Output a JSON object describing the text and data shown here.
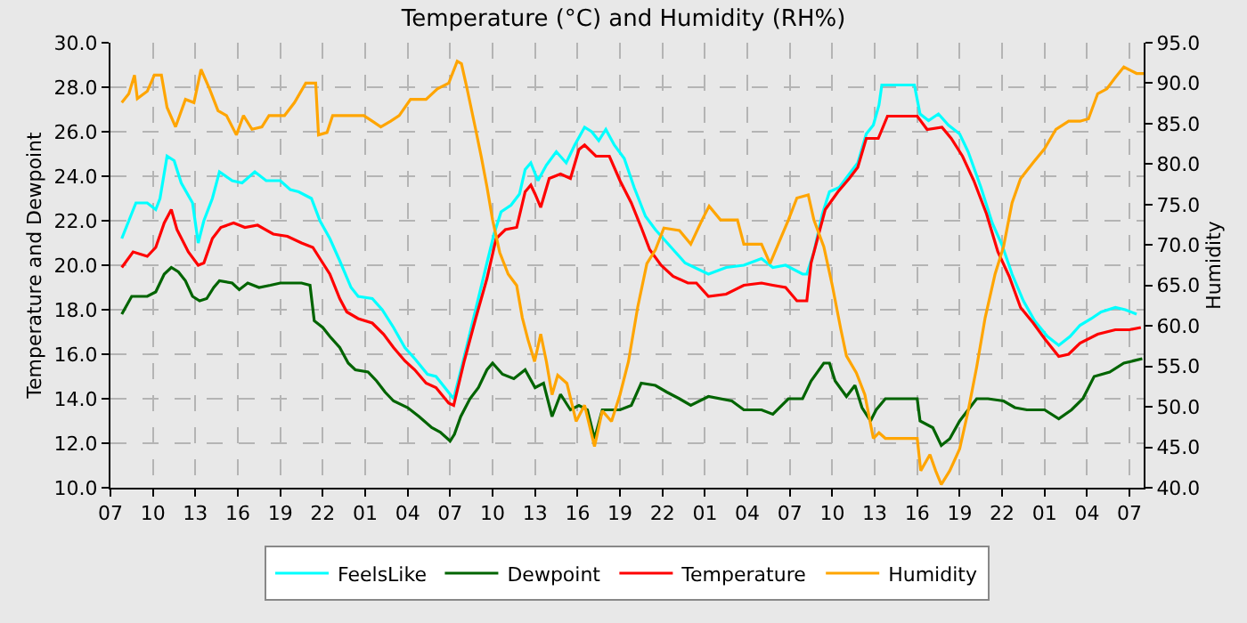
{
  "chart_data": {
    "type": "line",
    "title": "Temperature (°C) and Humidity (RH%)",
    "ylabel": "Temperature and Dewpoint",
    "y2label": "Humidity",
    "xlim": [
      "--01-01T07:00",
      "--01-04T08:00"
    ],
    "xticks": [
      {
        "value": "--01-01T07:00",
        "label": "07"
      },
      {
        "value": "--01-01T10:00",
        "label": "10"
      },
      {
        "value": "--01-01T13:00",
        "label": "13"
      },
      {
        "value": "--01-01T16:00",
        "label": "16"
      },
      {
        "value": "--01-01T19:00",
        "label": "19"
      },
      {
        "value": "--01-01T22:00",
        "label": "22"
      },
      {
        "value": "--01-02T01:00",
        "label": "01"
      },
      {
        "value": "--01-02T04:00",
        "label": "04"
      },
      {
        "value": "--01-02T07:00",
        "label": "07"
      },
      {
        "value": "--01-02T10:00",
        "label": "10"
      },
      {
        "value": "--01-02T13:00",
        "label": "13"
      },
      {
        "value": "--01-02T16:00",
        "label": "16"
      },
      {
        "value": "--01-02T19:00",
        "label": "19"
      },
      {
        "value": "--01-02T22:00",
        "label": "22"
      },
      {
        "value": "--01-03T01:00",
        "label": "01"
      },
      {
        "value": "--01-03T04:00",
        "label": "04"
      },
      {
        "value": "--01-03T07:00",
        "label": "07"
      },
      {
        "value": "--01-03T10:00",
        "label": "10"
      },
      {
        "value": "--01-03T13:00",
        "label": "13"
      },
      {
        "value": "--01-03T16:00",
        "label": "16"
      },
      {
        "value": "--01-03T19:00",
        "label": "19"
      },
      {
        "value": "--01-03T22:00",
        "label": "22"
      },
      {
        "value": "--01-04T01:00",
        "label": "01"
      },
      {
        "value": "--01-04T04:00",
        "label": "04"
      },
      {
        "value": "--01-04T07:00",
        "label": "07"
      }
    ],
    "ylim": [
      10,
      30
    ],
    "yticks": [
      {
        "value": 10,
        "label": "10.0"
      },
      {
        "value": 12,
        "label": "12.0"
      },
      {
        "value": 14,
        "label": "14.0"
      },
      {
        "value": 16,
        "label": "16.0"
      },
      {
        "value": 18,
        "label": "18.0"
      },
      {
        "value": 20,
        "label": "20.0"
      },
      {
        "value": 22,
        "label": "22.0"
      },
      {
        "value": 24,
        "label": "24.0"
      },
      {
        "value": 26,
        "label": "26.0"
      },
      {
        "value": 28,
        "label": "28.0"
      },
      {
        "value": 30,
        "label": "30.0"
      }
    ],
    "y2lim": [
      40,
      95
    ],
    "y2ticks": [
      {
        "value": 40,
        "label": "40.0"
      },
      {
        "value": 45,
        "label": "45.0"
      },
      {
        "value": 50,
        "label": "50.0"
      },
      {
        "value": 55,
        "label": "55.0"
      },
      {
        "value": 60,
        "label": "60.0"
      },
      {
        "value": 65,
        "label": "65.0"
      },
      {
        "value": 70,
        "label": "70.0"
      },
      {
        "value": 75,
        "label": "75.0"
      },
      {
        "value": 80,
        "label": "80.0"
      },
      {
        "value": 85,
        "label": "85.0"
      },
      {
        "value": 90,
        "label": "90.0"
      },
      {
        "value": 95,
        "label": "95.0"
      }
    ],
    "grid": true,
    "legend": "bottom",
    "line_style": "solid",
    "series": [
      {
        "name": "FeelsLike",
        "color": "#00ffff",
        "x": [
          "--01-01T07:48",
          "--01-01T08:18",
          "--01-01T08:48",
          "--01-01T09:36",
          "--01-01T10:12",
          "--01-01T10:30",
          "--01-01T11:00",
          "--01-01T11:30",
          "--01-01T12:00",
          "--01-01T12:48",
          "--01-01T13:12",
          "--01-01T13:36",
          "--01-01T14:12",
          "--01-01T14:42",
          "--01-01T15:36",
          "--01-01T16:18",
          "--01-01T17:12",
          "--01-01T18:00",
          "--01-01T19:00",
          "--01-01T19:42",
          "--01-01T20:18",
          "--01-01T21:12",
          "--01-01T21:48",
          "--01-01T22:30",
          "--01-01T23:12",
          "--01-02T00:00",
          "--01-02T00:30",
          "--01-02T01:30",
          "--01-02T02:12",
          "--01-02T03:00",
          "--01-02T03:48",
          "--01-02T04:30",
          "--01-02T05:24",
          "--01-02T06:00",
          "--01-02T07:00",
          "--01-02T07:15",
          "--01-02T08:00",
          "--01-02T08:48",
          "--01-02T09:36",
          "--01-02T10:06",
          "--01-02T10:36",
          "--01-02T11:18",
          "--01-02T11:54",
          "--01-02T12:18",
          "--01-02T12:42",
          "--01-02T13:12",
          "--01-02T13:48",
          "--01-02T14:30",
          "--01-02T15:12",
          "--01-02T15:48",
          "--01-02T16:30",
          "--01-02T17:00",
          "--01-02T17:30",
          "--01-02T18:00",
          "--01-02T18:36",
          "--01-02T19:18",
          "--01-02T20:00",
          "--01-02T20:48",
          "--01-02T21:30",
          "--01-02T22:12",
          "--01-02T22:54",
          "--01-02T23:36",
          "--01-03T01:15",
          "--01-03T02:30",
          "--01-03T03:45",
          "--01-03T05:00",
          "--01-03T05:48",
          "--01-03T06:42",
          "--01-03T07:54",
          "--01-03T08:12",
          "--01-03T08:42",
          "--01-03T09:18",
          "--01-03T09:48",
          "--01-03T10:30",
          "--01-03T11:12",
          "--01-03T11:48",
          "--01-03T12:24",
          "--01-03T12:54",
          "--01-03T13:18",
          "--01-03T13:30",
          "--01-03T15:48",
          "--01-03T16:12",
          "--01-03T16:48",
          "--01-03T17:30",
          "--01-03T18:12",
          "--01-03T19:00",
          "--01-03T19:36",
          "--01-03T20:30",
          "--01-03T21:18",
          "--01-03T22:00",
          "--01-03T22:42",
          "--01-03T23:30",
          "--01-04T00:18",
          "--01-04T01:12",
          "--01-04T02:00",
          "--01-04T02:48",
          "--01-04T03:30",
          "--01-04T04:18",
          "--01-04T05:00",
          "--01-04T06:00",
          "--01-04T06:42",
          "--01-04T07:30"
        ],
        "values": [
          21.2,
          22.0,
          22.8,
          22.8,
          22.5,
          23.0,
          24.9,
          24.7,
          23.7,
          22.8,
          21.0,
          22.0,
          23.0,
          24.2,
          23.8,
          23.7,
          24.2,
          23.8,
          23.8,
          23.4,
          23.3,
          23.0,
          22.0,
          21.2,
          20.2,
          19.0,
          18.6,
          18.5,
          18.0,
          17.2,
          16.3,
          15.8,
          15.1,
          15.0,
          14.2,
          14.0,
          15.9,
          18.0,
          20.1,
          21.4,
          22.4,
          22.7,
          23.2,
          24.3,
          24.6,
          23.8,
          24.5,
          25.1,
          24.6,
          25.4,
          26.2,
          26.0,
          25.6,
          26.1,
          25.4,
          24.8,
          23.5,
          22.2,
          21.6,
          21.1,
          20.6,
          20.1,
          19.6,
          19.9,
          20.0,
          20.3,
          19.9,
          20.0,
          19.6,
          19.6,
          20.6,
          22.3,
          23.3,
          23.5,
          24.1,
          24.6,
          25.9,
          26.3,
          27.2,
          28.1,
          28.1,
          26.8,
          26.5,
          26.8,
          26.3,
          25.9,
          25.1,
          23.5,
          21.9,
          20.9,
          19.6,
          18.4,
          17.5,
          16.8,
          16.4,
          16.8,
          17.3,
          17.6,
          17.9,
          18.1,
          18.0,
          17.8
        ]
      },
      {
        "name": "Dewpoint",
        "color": "#006400",
        "x": [
          "--01-01T07:48",
          "--01-01T08:30",
          "--01-01T09:36",
          "--01-01T10:12",
          "--01-01T10:48",
          "--01-01T11:18",
          "--01-01T11:48",
          "--01-01T12:18",
          "--01-01T12:48",
          "--01-01T13:18",
          "--01-01T13:48",
          "--01-01T14:18",
          "--01-01T14:42",
          "--01-01T15:36",
          "--01-01T16:06",
          "--01-01T16:42",
          "--01-01T17:30",
          "--01-01T18:18",
          "--01-01T19:00",
          "--01-01T20:30",
          "--01-01T21:06",
          "--01-01T21:24",
          "--01-01T22:00",
          "--01-01T22:30",
          "--01-01T23:12",
          "--01-01T23:48",
          "--01-02T00:18",
          "--01-02T01:12",
          "--01-02T01:48",
          "--01-02T02:24",
          "--01-02T03:00",
          "--01-02T04:00",
          "--01-02T04:48",
          "--01-02T05:42",
          "--01-02T06:18",
          "--01-02T07:00",
          "--01-02T07:18",
          "--01-02T07:45",
          "--01-02T08:24",
          "--01-02T09:00",
          "--01-02T09:36",
          "--01-02T10:00",
          "--01-02T10:42",
          "--01-02T11:30",
          "--01-02T12:18",
          "--01-02T13:00",
          "--01-02T13:36",
          "--01-02T14:12",
          "--01-02T14:48",
          "--01-02T15:30",
          "--01-02T16:06",
          "--01-02T16:42",
          "--01-02T17:12",
          "--01-02T17:45",
          "--01-02T18:24",
          "--01-02T19:00",
          "--01-02T19:48",
          "--01-02T20:30",
          "--01-02T21:30",
          "--01-02T22:18",
          "--01-02T23:12",
          "--01-03T00:00",
          "--01-03T01:15",
          "--01-03T02:54",
          "--01-03T03:45",
          "--01-03T05:00",
          "--01-03T05:48",
          "--01-03T06:54",
          "--01-03T07:54",
          "--01-03T08:30",
          "--01-03T09:24",
          "--01-03T09:48",
          "--01-03T10:12",
          "--01-03T11:00",
          "--01-03T11:36",
          "--01-03T12:06",
          "--01-03T12:42",
          "--01-03T13:06",
          "--01-03T13:45",
          "--01-03T16:00",
          "--01-03T16:12",
          "--01-03T17:06",
          "--01-03T17:42",
          "--01-03T18:18",
          "--01-03T19:00",
          "--01-03T19:36",
          "--01-03T20:12",
          "--01-03T21:00",
          "--01-03T22:06",
          "--01-03T22:54",
          "--01-03T23:45",
          "--01-04T01:00",
          "--01-04T02:00",
          "--01-04T02:54",
          "--01-04T03:42",
          "--01-04T04:30",
          "--01-04T05:36",
          "--01-04T06:36",
          "--01-04T07:54"
        ],
        "values": [
          17.8,
          18.6,
          18.6,
          18.8,
          19.6,
          19.9,
          19.7,
          19.3,
          18.6,
          18.4,
          18.5,
          19.0,
          19.3,
          19.2,
          18.9,
          19.2,
          19.0,
          19.1,
          19.2,
          19.2,
          19.1,
          17.5,
          17.2,
          16.8,
          16.3,
          15.6,
          15.3,
          15.2,
          14.8,
          14.3,
          13.9,
          13.6,
          13.2,
          12.7,
          12.5,
          12.1,
          12.4,
          13.2,
          14.0,
          14.5,
          15.3,
          15.6,
          15.1,
          14.9,
          15.3,
          14.5,
          14.7,
          13.2,
          14.2,
          13.5,
          13.7,
          13.5,
          12.2,
          13.5,
          13.5,
          13.5,
          13.7,
          14.7,
          14.6,
          14.3,
          14.0,
          13.7,
          14.1,
          13.9,
          13.5,
          13.5,
          13.3,
          14.0,
          14.0,
          14.8,
          15.6,
          15.6,
          14.8,
          14.1,
          14.6,
          13.6,
          13.0,
          13.5,
          14.0,
          14.0,
          13.0,
          12.7,
          11.9,
          12.2,
          13.0,
          13.5,
          14.0,
          14.0,
          13.9,
          13.6,
          13.5,
          13.5,
          13.1,
          13.5,
          14.0,
          15.0,
          15.2,
          15.6,
          15.8
        ]
      },
      {
        "name": "Temperature",
        "color": "#ff0000",
        "x": [
          "--01-01T07:48",
          "--01-01T08:36",
          "--01-01T09:36",
          "--01-01T10:12",
          "--01-01T10:48",
          "--01-01T11:18",
          "--01-01T11:42",
          "--01-01T12:30",
          "--01-01T13:12",
          "--01-01T13:36",
          "--01-01T14:12",
          "--01-01T14:48",
          "--01-01T15:42",
          "--01-01T16:30",
          "--01-01T17:24",
          "--01-01T18:30",
          "--01-01T19:30",
          "--01-01T20:30",
          "--01-01T21:18",
          "--01-01T21:48",
          "--01-01T22:30",
          "--01-01T23:12",
          "--01-01T23:42",
          "--01-02T00:30",
          "--01-02T01:30",
          "--01-02T02:18",
          "--01-02T03:00",
          "--01-02T03:48",
          "--01-02T04:30",
          "--01-02T05:18",
          "--01-02T06:00",
          "--01-02T06:54",
          "--01-02T07:15",
          "--01-02T08:00",
          "--01-02T08:48",
          "--01-02T09:36",
          "--01-02T10:15",
          "--01-02T10:54",
          "--01-02T11:42",
          "--01-02T12:18",
          "--01-02T12:42",
          "--01-02T13:00",
          "--01-02T13:24",
          "--01-02T14:00",
          "--01-02T14:48",
          "--01-02T15:30",
          "--01-02T16:06",
          "--01-02T16:30",
          "--01-02T17:18",
          "--01-02T18:15",
          "--01-02T19:00",
          "--01-02T19:48",
          "--01-02T20:30",
          "--01-02T21:06",
          "--01-02T21:54",
          "--01-02T22:45",
          "--01-02T23:48",
          "--01-03T00:24",
          "--01-03T01:15",
          "--01-03T02:30",
          "--01-03T03:45",
          "--01-03T05:00",
          "--01-03T05:48",
          "--01-03T06:42",
          "--01-03T07:30",
          "--01-03T08:12",
          "--01-03T08:30",
          "--01-03T09:30",
          "--01-03T10:24",
          "--01-03T11:12",
          "--01-03T11:48",
          "--01-03T12:24",
          "--01-03T13:15",
          "--01-03T13:54",
          "--01-03T16:00",
          "--01-03T16:42",
          "--01-03T17:45",
          "--01-03T18:24",
          "--01-03T19:12",
          "--01-03T20:00",
          "--01-03T20:54",
          "--01-03T21:42",
          "--01-03T22:30",
          "--01-03T23:18",
          "--01-04T00:12",
          "--01-04T01:00",
          "--01-04T02:00",
          "--01-04T02:42",
          "--01-04T03:30",
          "--01-04T04:45",
          "--01-04T06:00",
          "--01-04T07:00",
          "--01-04T07:48"
        ],
        "values": [
          19.9,
          20.6,
          20.4,
          20.8,
          21.9,
          22.5,
          21.6,
          20.6,
          20.0,
          20.1,
          21.2,
          21.7,
          21.9,
          21.7,
          21.8,
          21.4,
          21.3,
          21.0,
          20.8,
          20.3,
          19.6,
          18.5,
          17.9,
          17.6,
          17.4,
          16.9,
          16.3,
          15.7,
          15.3,
          14.7,
          14.5,
          13.8,
          13.7,
          15.7,
          17.6,
          19.4,
          21.2,
          21.6,
          21.7,
          23.3,
          23.6,
          23.2,
          22.6,
          23.9,
          24.1,
          23.9,
          25.2,
          25.4,
          24.9,
          24.9,
          23.8,
          22.8,
          21.7,
          20.7,
          20.0,
          19.5,
          19.2,
          19.2,
          18.6,
          18.7,
          19.1,
          19.2,
          19.1,
          19.0,
          18.4,
          18.4,
          20.1,
          22.5,
          23.3,
          23.9,
          24.4,
          25.7,
          25.7,
          26.7,
          26.7,
          26.1,
          26.2,
          25.7,
          24.9,
          23.8,
          22.3,
          20.6,
          19.5,
          18.1,
          17.4,
          16.7,
          15.9,
          16.0,
          16.5,
          16.9,
          17.1,
          17.1,
          17.2
        ]
      },
      {
        "name": "Humidity",
        "color": "#ffa500",
        "axis": "y2",
        "x": [
          "--01-01T07:48",
          "--01-01T08:18",
          "--01-01T08:42",
          "--01-01T08:54",
          "--01-01T09:36",
          "--01-01T10:06",
          "--01-01T10:36",
          "--01-01T11:00",
          "--01-01T11:36",
          "--01-01T12:18",
          "--01-01T12:54",
          "--01-01T13:24",
          "--01-01T14:00",
          "--01-01T14:36",
          "--01-01T15:12",
          "--01-01T15:54",
          "--01-01T16:24",
          "--01-01T17:00",
          "--01-01T17:42",
          "--01-01T18:12",
          "--01-01T19:18",
          "--01-01T20:00",
          "--01-01T20:48",
          "--01-01T21:30",
          "--01-01T21:42",
          "--01-01T22:18",
          "--01-01T22:42",
          "--01-01T23:54",
          "--01-02T00:54",
          "--01-02T01:30",
          "--01-02T02:06",
          "--01-02T02:48",
          "--01-02T03:24",
          "--01-02T04:12",
          "--01-02T05:18",
          "--01-02T06:06",
          "--01-02T06:54",
          "--01-02T07:30",
          "--01-02T07:48",
          "--01-02T08:12",
          "--01-02T08:48",
          "--01-02T09:12",
          "--01-02T09:36",
          "--01-02T10:00",
          "--01-02T10:30",
          "--01-02T11:06",
          "--01-02T11:42",
          "--01-02T12:06",
          "--01-02T12:30",
          "--01-02T12:58",
          "--01-02T13:24",
          "--01-02T13:48",
          "--01-02T14:12",
          "--01-02T14:36",
          "--01-02T15:15",
          "--01-02T15:54",
          "--01-02T16:30",
          "--01-02T17:12",
          "--01-02T17:45",
          "--01-02T18:24",
          "--01-02T19:00",
          "--01-02T19:36",
          "--01-02T20:15",
          "--01-02T20:54",
          "--01-02T21:30",
          "--01-02T22:06",
          "--01-02T23:12",
          "--01-03T00:00",
          "--01-03T00:48",
          "--01-03T01:18",
          "--01-03T02:06",
          "--01-03T03:18",
          "--01-03T03:45",
          "--01-03T05:00",
          "--01-03T05:36",
          "--01-03T06:15",
          "--01-03T06:54",
          "--01-03T07:30",
          "--01-03T08:18",
          "--01-03T08:42",
          "--01-03T09:24",
          "--01-03T10:00",
          "--01-03T10:36",
          "--01-03T11:00",
          "--01-03T11:42",
          "--01-03T12:18",
          "--01-03T12:54",
          "--01-03T13:18",
          "--01-03T13:45",
          "--01-03T16:00",
          "--01-03T16:15",
          "--01-03T16:54",
          "--01-03T17:18",
          "--01-03T17:42",
          "--01-03T18:18",
          "--01-03T19:00",
          "--01-03T19:36",
          "--01-03T20:12",
          "--01-03T20:48",
          "--01-03T21:30",
          "--01-03T22:06",
          "--01-03T22:42",
          "--01-03T23:18",
          "--01-04T00:12",
          "--01-04T01:00",
          "--01-04T01:48",
          "--01-04T02:42",
          "--01-04T03:30",
          "--01-04T04:06",
          "--01-04T04:45",
          "--01-04T05:24",
          "--01-04T06:00",
          "--01-04T06:36",
          "--01-04T07:30",
          "--01-04T08:00"
        ],
        "values": [
          87.6,
          88.7,
          91.0,
          88.1,
          89.0,
          91.0,
          91.0,
          87.0,
          84.6,
          88.0,
          87.6,
          91.7,
          89.3,
          86.6,
          86.0,
          83.6,
          86.0,
          84.3,
          84.6,
          86.0,
          86.0,
          87.6,
          90.0,
          90.0,
          83.6,
          83.9,
          86.0,
          86.0,
          86.0,
          85.3,
          84.6,
          85.3,
          86.0,
          88.0,
          88.0,
          89.3,
          90.0,
          92.7,
          92.4,
          89.3,
          84.3,
          80.9,
          77.2,
          73.1,
          69.1,
          66.4,
          65.0,
          61.0,
          58.3,
          55.6,
          59.0,
          55.6,
          51.5,
          53.9,
          52.9,
          48.2,
          50.2,
          45.1,
          49.5,
          48.2,
          51.5,
          55.6,
          62.3,
          67.7,
          69.4,
          72.1,
          71.8,
          70.1,
          73.1,
          74.8,
          73.1,
          73.1,
          70.1,
          70.1,
          67.7,
          70.4,
          73.1,
          75.8,
          76.2,
          73.1,
          69.8,
          65.0,
          59.6,
          56.3,
          54.2,
          51.5,
          46.1,
          46.8,
          46.1,
          46.1,
          42.1,
          44.1,
          42.1,
          40.4,
          42.1,
          44.8,
          49.5,
          54.9,
          61.0,
          66.4,
          69.8,
          75.2,
          78.2,
          80.2,
          81.9,
          84.3,
          85.3,
          85.3,
          85.6,
          88.7,
          89.3,
          90.7,
          92.0,
          91.2,
          91.2
        ]
      }
    ]
  }
}
